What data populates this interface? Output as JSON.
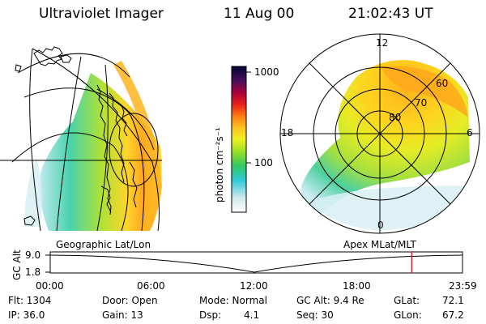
{
  "header": {
    "instrument": "Ultraviolet Imager",
    "date": "11 Aug 00",
    "time": "21:02:43 UT"
  },
  "colorbar": {
    "label": "photon cm⁻²s⁻¹",
    "ticks": [
      "1000",
      "100"
    ]
  },
  "polar_plot": {
    "mlt_labels": [
      "12",
      "18",
      "6",
      "0"
    ],
    "mlat_labels": [
      "60",
      "70",
      "80"
    ]
  },
  "panel_titles": {
    "left": "Geographic Lat/Lon",
    "right": "Apex MLat/MLT"
  },
  "timeline": {
    "ylabel": "GC Alt",
    "yticks": [
      "9.0",
      "1.8"
    ],
    "xticks": [
      "00:00",
      "06:00",
      "12:00",
      "18:00",
      "23:59"
    ],
    "current_time_fraction": 0.877
  },
  "status": {
    "flt": "Flt: 1304",
    "ip": "IP: 36.0",
    "door": "Door: Open",
    "gain": "Gain: 13",
    "mode": "Mode: Normal",
    "dsp_label": "Dsp:",
    "dsp_value": "4.1",
    "gc_alt": "GC Alt: 9.4 Re",
    "seq": "Seq: 30",
    "glat_label": "GLat:",
    "glat_value": "72.1",
    "glon_label": "GLon:",
    "glon_value": "67.2"
  },
  "colors": {
    "timeline_marker": "#cc2222"
  }
}
